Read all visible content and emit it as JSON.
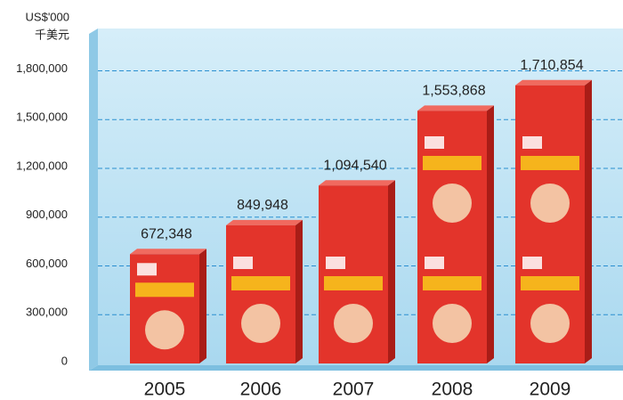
{
  "chart_data": {
    "type": "bar",
    "ylabel": [
      "US$'000",
      "千美元"
    ],
    "categories": [
      "2005",
      "2006",
      "2007",
      "2008",
      "2009"
    ],
    "values": [
      672348,
      849948,
      1094540,
      1553868,
      1710854
    ],
    "value_labels": [
      "672,348",
      "849,948",
      "1,094,540",
      "1,553,868",
      "1,710,854"
    ],
    "color": "#e3342b",
    "ylim": [
      0,
      2060000
    ],
    "yticks": [
      0,
      {
        "value": 300000,
        "label": "300,000"
      },
      {
        "value": 600000,
        "label": "600,000"
      },
      {
        "value": 900000,
        "label": "900,000"
      },
      {
        "value": 1200000,
        "label": "1,200,000"
      },
      {
        "value": 1500000,
        "label": "1,500,000"
      },
      {
        "value": 1800000,
        "label": "1,800,000"
      }
    ],
    "grid": true
  }
}
